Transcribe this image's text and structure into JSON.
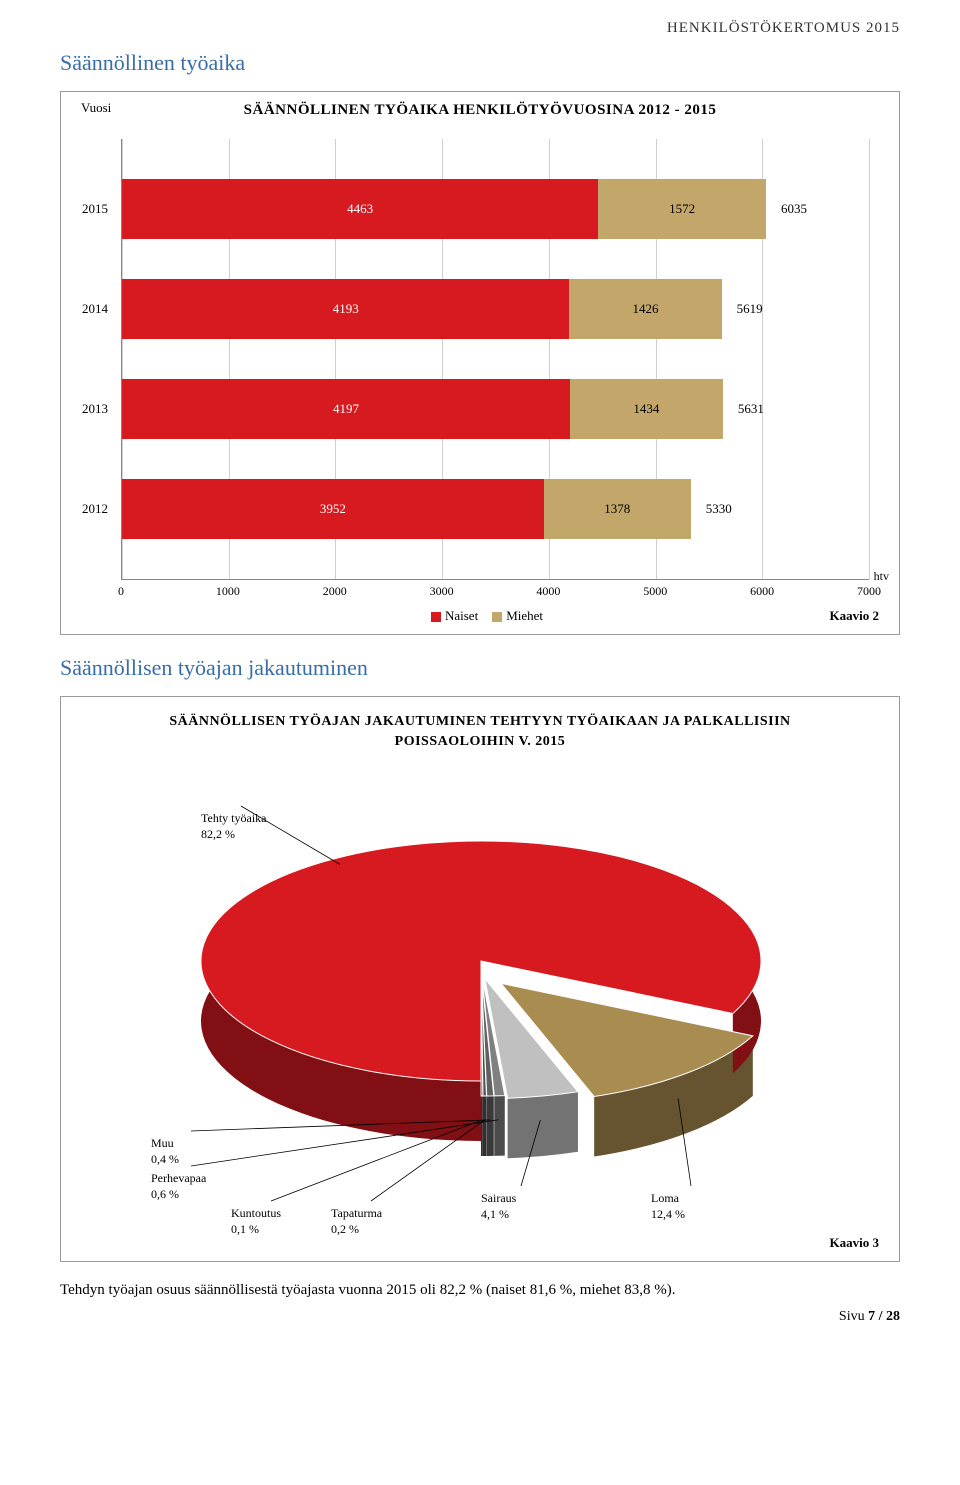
{
  "header_right": "HENKILÖSTÖKERTOMUS 2015",
  "section1_title": "Säännöllinen työaika",
  "section2_title": "Säännöllisen työajan jakautuminen",
  "bar_chart": {
    "ylabel": "Vuosi",
    "title": "SÄÄNNÖLLINEN TYÖAIKA HENKILÖTYÖVUOSINA 2012 - 2015",
    "xmax": 7000,
    "xticks": [
      0,
      1000,
      2000,
      3000,
      4000,
      5000,
      6000,
      7000
    ],
    "axis_unit": "htv",
    "colors": {
      "naiset": "#d71920",
      "miehet": "#c2a66a"
    },
    "legend": [
      {
        "label": "Naiset",
        "color": "#d71920"
      },
      {
        "label": "Miehet",
        "color": "#c2a66a"
      }
    ],
    "rows": [
      {
        "year": "2015",
        "naiset": 4463,
        "miehet": 1572,
        "total": 6035
      },
      {
        "year": "2014",
        "naiset": 4193,
        "miehet": 1426,
        "total": 5619
      },
      {
        "year": "2013",
        "naiset": 4197,
        "miehet": 1434,
        "total": 5631
      },
      {
        "year": "2012",
        "naiset": 3952,
        "miehet": 1378,
        "total": 5330
      }
    ],
    "caption": "Kaavio 2"
  },
  "pie_chart": {
    "title_line1": "SÄÄNNÖLLISEN TYÖAJAN JAKAUTUMINEN TEHTYYN TYÖAIKAAN JA PALKALLISIIN",
    "title_line2": "POISSAOLOIHIN V. 2015",
    "slices": [
      {
        "name": "Tehty työaika",
        "pct": "82,2 %",
        "color": "#d71920"
      },
      {
        "name": "Loma",
        "pct": "12,4 %",
        "color": "#a98c4f"
      },
      {
        "name": "Sairaus",
        "pct": "4,1 %",
        "color": "#c0c0c0"
      },
      {
        "name": "Perhevapaa",
        "pct": "0,6 %",
        "color": "#808080"
      },
      {
        "name": "Muu",
        "pct": "0,4 %",
        "color": "#606060"
      },
      {
        "name": "Tapaturma",
        "pct": "0,2 %",
        "color": "#505050"
      },
      {
        "name": "Kuntoutus",
        "pct": "0,1 %",
        "color": "#404040"
      }
    ],
    "caption": "Kaavio 3"
  },
  "body_text": "Tehdyn työajan osuus säännöllisestä työajasta vuonna 2015 oli 82,2 % (naiset 81,6 %, miehet 83,8 %).",
  "footer": {
    "label": "Sivu",
    "num": "7 / 28"
  }
}
